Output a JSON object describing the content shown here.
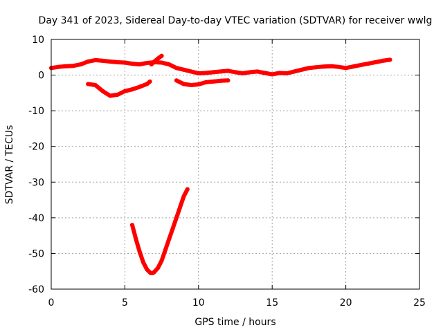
{
  "chart_data": {
    "type": "scatter",
    "title": "Day 341 of 2023, Sidereal Day-to-day VTEC variation (SDTVAR) for receiver wwlg",
    "xlabel": "GPS time / hours",
    "ylabel": "SDTVAR / TECUs",
    "xlim": [
      0,
      25
    ],
    "ylim": [
      -60,
      10
    ],
    "xticks": [
      0,
      5,
      10,
      15,
      20,
      25
    ],
    "yticks": [
      -60,
      -50,
      -40,
      -30,
      -20,
      -10,
      0,
      10
    ],
    "grid": true,
    "colors": {
      "series": "#ff0000",
      "grid": "#a0a0a0",
      "axis": "#000000"
    },
    "series": [
      {
        "name": "arc-main-upper",
        "x": [
          0.0,
          0.5,
          1.0,
          1.5,
          2.0,
          2.5,
          3.0,
          3.5,
          4.0,
          4.5,
          5.0,
          5.5,
          6.0,
          6.5,
          7.0,
          7.5,
          8.0,
          8.5,
          9.0,
          9.5,
          10.0,
          10.5,
          11.0,
          11.5,
          12.0,
          12.5,
          13.0,
          13.5,
          14.0,
          14.5,
          15.0,
          15.5,
          16.0,
          16.5,
          17.0,
          17.5,
          18.0,
          18.5,
          19.0,
          19.5,
          20.0,
          20.5,
          21.0,
          21.5,
          22.0,
          22.5,
          23.0
        ],
        "y": [
          2.0,
          2.3,
          2.5,
          2.6,
          3.0,
          3.8,
          4.2,
          4.0,
          3.8,
          3.6,
          3.5,
          3.2,
          3.0,
          3.4,
          3.6,
          3.5,
          3.0,
          2.0,
          1.5,
          1.0,
          0.5,
          0.6,
          0.8,
          1.0,
          1.2,
          0.8,
          0.5,
          0.8,
          1.0,
          0.6,
          0.2,
          0.6,
          0.5,
          1.0,
          1.5,
          2.0,
          2.2,
          2.4,
          2.5,
          2.3,
          2.0,
          2.4,
          2.8,
          3.2,
          3.6,
          4.0,
          4.3
        ]
      },
      {
        "name": "arc-early-dip",
        "x": [
          2.5,
          3.0,
          3.5,
          4.0,
          4.5,
          5.0,
          5.5,
          6.0,
          6.5,
          6.7
        ],
        "y": [
          -2.5,
          -2.8,
          -4.5,
          -5.8,
          -5.5,
          -4.5,
          -4.0,
          -3.3,
          -2.5,
          -1.8
        ]
      },
      {
        "name": "arc-late-morning",
        "x": [
          6.8,
          7.0,
          7.3,
          7.5
        ],
        "y": [
          3.0,
          3.8,
          4.8,
          5.4
        ]
      },
      {
        "name": "arc-mid-low",
        "x": [
          8.5,
          9.0,
          9.5,
          10.0,
          10.5,
          11.0,
          11.5,
          12.0
        ],
        "y": [
          -1.5,
          -2.5,
          -2.8,
          -2.6,
          -2.0,
          -1.8,
          -1.6,
          -1.5
        ]
      },
      {
        "name": "arc-deep-dip",
        "x": [
          5.5,
          5.75,
          6.0,
          6.25,
          6.5,
          6.75,
          6.9,
          7.0,
          7.25,
          7.5,
          7.75,
          8.0,
          8.25,
          8.5,
          8.75,
          9.0,
          9.25
        ],
        "y": [
          -42,
          -46,
          -49.5,
          -52.5,
          -54.5,
          -55.5,
          -55.5,
          -55.2,
          -54,
          -52,
          -49,
          -46,
          -43,
          -40,
          -37,
          -34,
          -32
        ]
      }
    ]
  }
}
